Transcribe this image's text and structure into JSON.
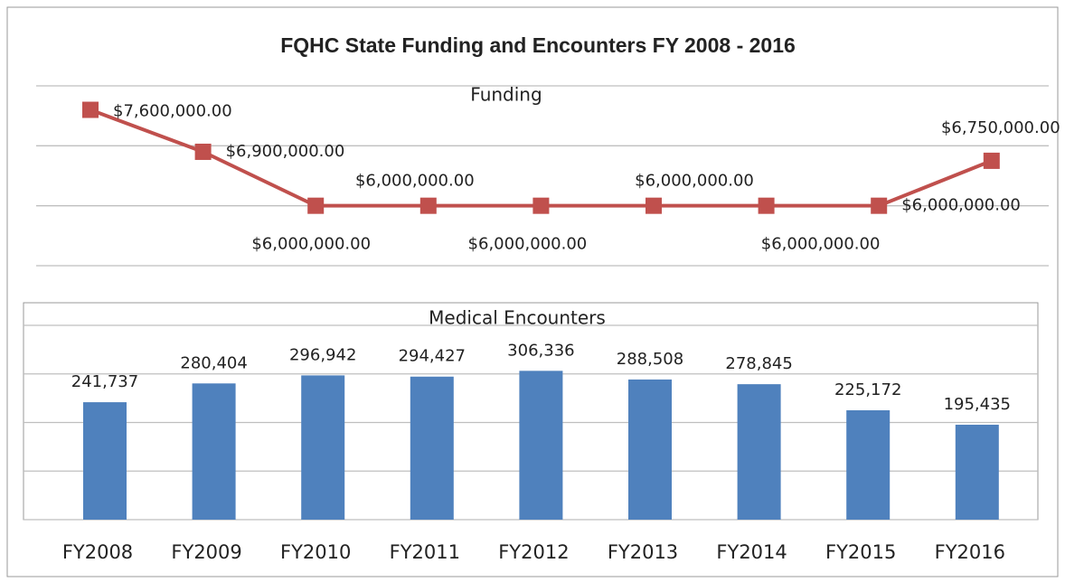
{
  "title": "FQHC State Funding and Encounters FY 2008 - 2016",
  "chart_data": [
    {
      "type": "line",
      "title": "Funding",
      "color": "#c0504d",
      "values": [
        7600000,
        6900000,
        6000000,
        6000000,
        6000000,
        6000000,
        6000000,
        6000000,
        6750000
      ],
      "value_labels": [
        "$7,600,000.00",
        "$6,900,000.00",
        "$6,000,000.00",
        "$6,000,000.00",
        "$6,000,000.00",
        "$6,000,000.00",
        "$6,000,000.00",
        "$6,000,000.00",
        "$6,750,000.00"
      ],
      "ylim": [
        5000000,
        8000000
      ],
      "yticks": [
        5000000,
        6000000,
        7000000,
        8000000
      ],
      "grid": true
    },
    {
      "type": "bar",
      "title": "Medical Encounters",
      "color": "#4f81bd",
      "categories": [
        "FY2008",
        "FY2009",
        "FY2010",
        "FY2011",
        "FY2012",
        "FY2013",
        "FY2014",
        "FY2015",
        "FY2016"
      ],
      "values": [
        241737,
        280404,
        296942,
        294427,
        306336,
        288508,
        278845,
        225172,
        195435
      ],
      "value_labels": [
        "241,737",
        "280,404",
        "296,942",
        "294,427",
        "306,336",
        "288,508",
        "278,845",
        "225,172",
        "195,435"
      ],
      "ylim": [
        0,
        400000
      ],
      "yticks": [
        0,
        100000,
        200000,
        300000,
        400000
      ],
      "grid": true
    }
  ]
}
